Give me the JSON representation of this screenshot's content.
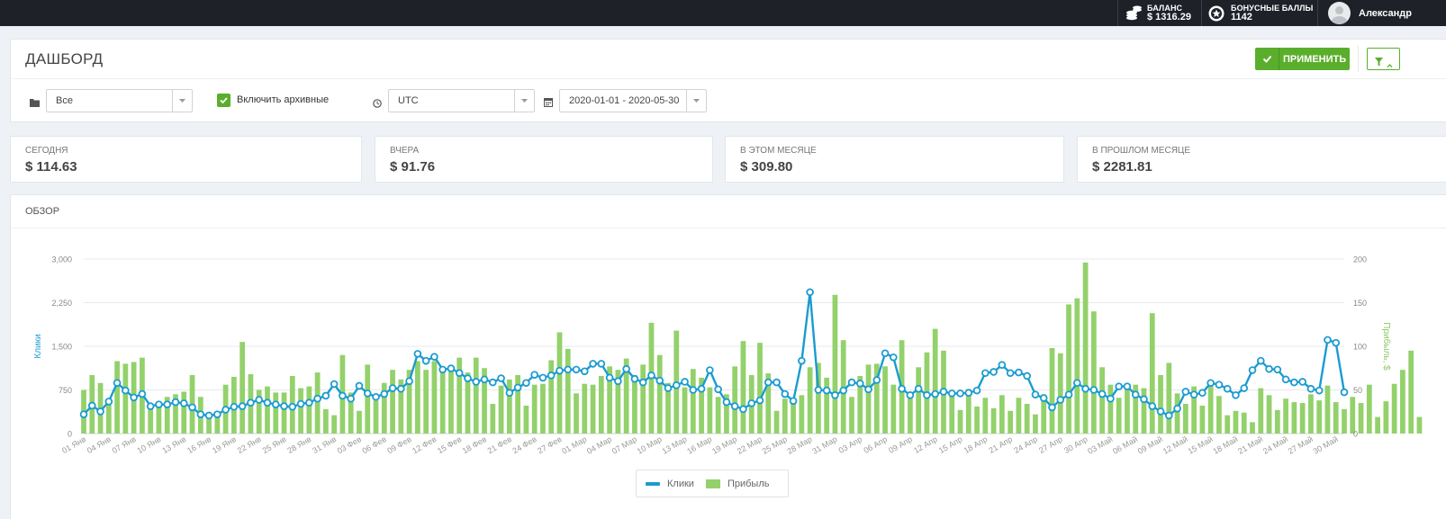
{
  "topbar": {
    "balance_label": "БАЛАНС",
    "balance_value": "$ 1316.29",
    "bonus_label": "БОНУСНЫЕ БАЛЛЫ",
    "bonus_value": "1142",
    "user_name": "Александр"
  },
  "header": {
    "title": "ДАШБОРД",
    "apply_label": "ПРИМЕНИТЬ"
  },
  "filters": {
    "category_value": "Все",
    "archive_label": "Включить архивные",
    "archive_checked": true,
    "timezone_value": "UTC",
    "date_range_value": "2020-01-01 - 2020-05-30"
  },
  "stats": [
    {
      "label": "Сегодня",
      "value": "$ 114.63"
    },
    {
      "label": "Вчера",
      "value": "$ 91.76"
    },
    {
      "label": "В этом месяце",
      "value": "$ 309.80"
    },
    {
      "label": "В прошлом месяце",
      "value": "$ 2281.81"
    }
  ],
  "overview": {
    "title": "ОБЗОР"
  },
  "chart_data": {
    "type": "bar",
    "ylabel": "Клики",
    "y2label": "Прибыль, $",
    "ylim": [
      0,
      3000
    ],
    "y2lim": [
      0,
      200
    ],
    "yticks": [
      "0",
      "750",
      "1,500",
      "2,250",
      "3,000"
    ],
    "y2ticks": [
      "0",
      "50",
      "100",
      "150",
      "200"
    ],
    "grid": true,
    "legend_position": "bottom-center",
    "colors": {
      "clicks": "#1b9bd1",
      "profit": "#93d16b",
      "accent": "#5aae2c",
      "topbar": "#1e2128"
    },
    "xtick_labels": [
      "01 Янв",
      "04 Янв",
      "07 Янв",
      "10 Янв",
      "13 Янв",
      "16 Янв",
      "19 Янв",
      "22 Янв",
      "25 Янв",
      "28 Янв",
      "31 Янв",
      "03 Фев",
      "06 Фев",
      "09 Фев",
      "12 Фев",
      "15 Фев",
      "18 Фев",
      "21 Фев",
      "24 Фев",
      "27 Фев",
      "01 Мар",
      "04 Мар",
      "07 Мар",
      "10 Мар",
      "13 Мар",
      "16 Мар",
      "19 Мар",
      "22 Мар",
      "25 Мар",
      "28 Мар",
      "31 Мар",
      "03 Апр",
      "06 Апр",
      "09 Апр",
      "12 Апр",
      "15 Апр",
      "18 Апр",
      "21 Апр",
      "24 Апр",
      "27 Апр",
      "30 Апр",
      "03 Май",
      "06 Май",
      "09 Май",
      "12 Май",
      "15 Май",
      "18 Май",
      "21 Май",
      "24 Май",
      "27 Май",
      "30 Май"
    ],
    "series": [
      {
        "name": "Клики",
        "kind": "line",
        "axis": "left",
        "values": [
          330,
          480,
          380,
          550,
          870,
          740,
          620,
          680,
          470,
          500,
          500,
          540,
          520,
          450,
          330,
          310,
          330,
          410,
          460,
          470,
          530,
          580,
          530,
          500,
          470,
          460,
          510,
          530,
          600,
          650,
          850,
          650,
          600,
          820,
          690,
          630,
          680,
          780,
          770,
          900,
          1370,
          1250,
          1320,
          1100,
          1120,
          1040,
          950,
          890,
          930,
          880,
          950,
          700,
          790,
          870,
          1010,
          960,
          1000,
          1080,
          1100,
          1100,
          1070,
          1200,
          1200,
          960,
          900,
          1110,
          940,
          880,
          1000,
          910,
          780,
          830,
          890,
          750,
          770,
          1090,
          760,
          540,
          470,
          420,
          520,
          570,
          880,
          880,
          680,
          560,
          1250,
          2430,
          750,
          740,
          660,
          740,
          880,
          860,
          760,
          920,
          1380,
          1310,
          770,
          660,
          770,
          660,
          680,
          720,
          690,
          690,
          700,
          740,
          1040,
          1060,
          1180,
          1040,
          1050,
          990,
          670,
          610,
          450,
          580,
          670,
          870,
          770,
          750,
          680,
          600,
          810,
          810,
          670,
          590,
          470,
          380,
          310,
          430,
          720,
          670,
          700,
          870,
          840,
          770,
          660,
          780,
          1090,
          1250,
          1110,
          1100,
          930,
          880,
          890,
          770,
          740,
          1610,
          1560,
          710
        ]
      },
      {
        "name": "Прибыль",
        "kind": "bar",
        "axis": "right",
        "values": [
          50,
          67,
          58,
          40,
          83,
          80,
          82,
          87,
          34,
          31,
          42,
          45,
          48,
          67,
          42,
          19,
          19,
          56,
          65,
          105,
          68,
          50,
          54,
          47,
          47,
          66,
          52,
          54,
          70,
          28,
          21,
          90,
          47,
          26,
          79,
          38,
          58,
          73,
          62,
          73,
          83,
          73,
          83,
          74,
          76,
          87,
          70,
          87,
          75,
          34,
          55,
          62,
          67,
          32,
          56,
          57,
          84,
          116,
          97,
          46,
          57,
          56,
          66,
          77,
          73,
          86,
          67,
          79,
          127,
          90,
          58,
          118,
          53,
          74,
          64,
          53,
          42,
          45,
          77,
          106,
          67,
          104,
          69,
          26,
          40,
          38,
          44,
          76,
          81,
          64,
          159,
          107,
          42,
          66,
          79,
          80,
          77,
          56,
          107,
          45,
          76,
          93,
          120,
          95,
          44,
          27,
          51,
          31,
          41,
          29,
          44,
          26,
          41,
          34,
          22,
          45,
          98,
          92,
          148,
          155,
          196,
          140,
          76,
          56,
          41,
          53,
          56,
          52,
          138,
          67,
          81,
          46,
          34,
          54,
          32,
          56,
          43,
          21,
          26,
          24,
          13,
          52,
          44,
          27,
          40,
          36,
          35,
          45,
          38,
          55,
          36,
          28,
          42,
          35,
          56,
          19,
          37,
          57,
          73,
          95,
          19
        ]
      }
    ]
  },
  "legend": {
    "clicks": "Клики",
    "profit": "Прибыль"
  }
}
